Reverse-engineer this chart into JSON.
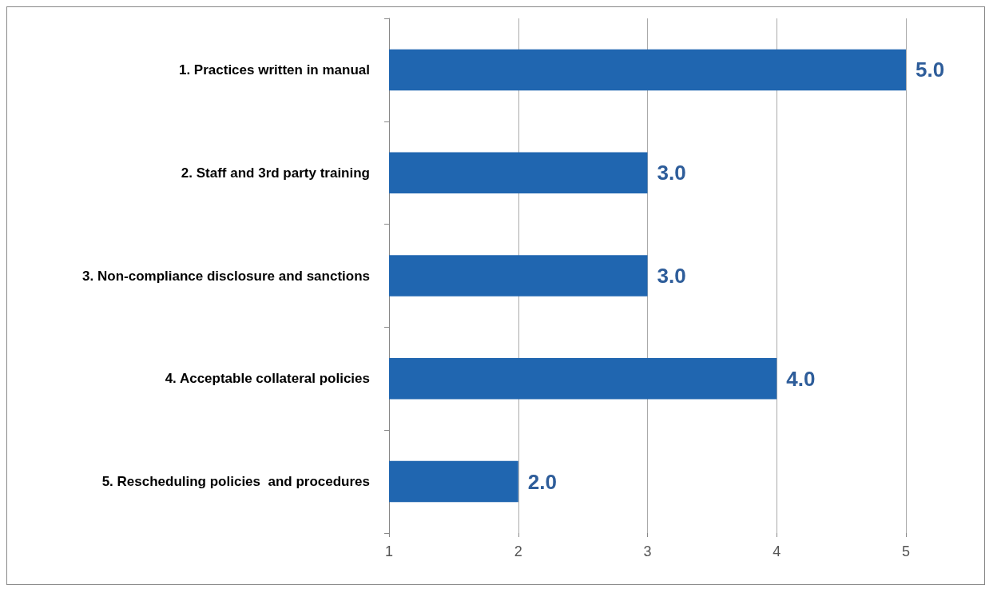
{
  "chart_data": {
    "type": "bar",
    "orientation": "horizontal",
    "categories": [
      "1. Practices written in manual",
      "2. Staff and 3rd party training",
      "3. Non-compliance disclosure and sanctions",
      "4. Acceptable collateral policies",
      "5. Rescheduling policies  and procedures"
    ],
    "values": [
      5,
      3,
      3,
      4,
      2
    ],
    "value_labels": [
      "5.0",
      "3.0",
      "3.0",
      "4.0",
      "2.0"
    ],
    "color": "#2066b0",
    "xlim": [
      1,
      5
    ],
    "xticks": [
      1,
      2,
      3,
      4,
      5
    ],
    "grid": "x"
  }
}
